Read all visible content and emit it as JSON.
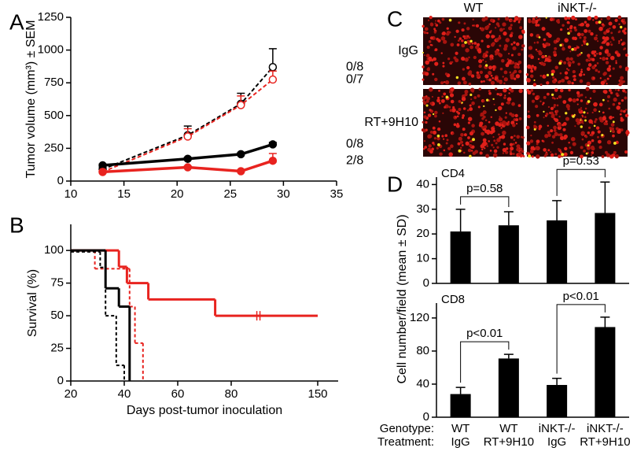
{
  "chart_data": [
    {
      "type": "line",
      "panel": "A",
      "ylabel": "Tumor volume (mm³) ± SEM",
      "x": [
        13,
        21,
        26,
        29
      ],
      "xlim": [
        10,
        35
      ],
      "xticks": [
        10,
        15,
        20,
        25,
        30,
        35
      ],
      "ylim": [
        0,
        1250
      ],
      "yticks": [
        0,
        250,
        500,
        750,
        1000,
        1250
      ],
      "series": [
        {
          "color": "#000000",
          "dashed": true,
          "marker": "open",
          "values": [
            90,
            350,
            590,
            870
          ],
          "errors": [
            15,
            70,
            80,
            140
          ],
          "end_label": "0/8"
        },
        {
          "color": "#e8231f",
          "dashed": true,
          "marker": "open",
          "values": [
            70,
            340,
            580,
            775
          ],
          "errors": [
            10,
            60,
            70,
            65
          ],
          "end_label": "0/7"
        },
        {
          "color": "#000000",
          "dashed": false,
          "marker": "filled",
          "values": [
            120,
            170,
            205,
            280
          ],
          "errors": [
            10,
            10,
            10,
            15
          ],
          "end_label": "0/8"
        },
        {
          "color": "#e8231f",
          "dashed": false,
          "marker": "filled",
          "values": [
            70,
            105,
            75,
            155
          ],
          "errors": [
            10,
            10,
            10,
            55
          ],
          "end_label": "2/8"
        }
      ]
    },
    {
      "type": "step",
      "panel": "B",
      "ylabel": "Survival (%)",
      "xlabel": "Days post-tumor inoculation",
      "xlim": [
        20,
        150
      ],
      "xticks": [
        20,
        40,
        60,
        80,
        150
      ],
      "ylim": [
        0,
        120
      ],
      "yticks": [
        0,
        25,
        50,
        75,
        100
      ],
      "series": [
        {
          "color": "#e8231f",
          "dashed": false,
          "x": [
            20,
            38,
            41,
            49,
            74,
            150
          ],
          "values": [
            100,
            87.5,
            75,
            62.5,
            50,
            50
          ],
          "censored_x": [
            102
          ]
        },
        {
          "color": "#e8231f",
          "dashed": true,
          "x": [
            20,
            29,
            42,
            44,
            47
          ],
          "values": [
            100,
            86,
            57,
            29,
            0
          ]
        },
        {
          "color": "#000000",
          "dashed": false,
          "x": [
            20,
            33,
            38,
            42
          ],
          "values": [
            100,
            71,
            57,
            0
          ]
        },
        {
          "color": "#000000",
          "dashed": true,
          "x": [
            20,
            31,
            33,
            37,
            40
          ],
          "values": [
            99,
            87,
            50,
            12,
            0
          ]
        }
      ]
    },
    {
      "type": "bar",
      "panel": "D",
      "title": "CD4",
      "ylabel": "Cell number/field (mean ± SD)",
      "color": "#000000",
      "values": [
        21,
        23.5,
        25.5,
        28.5
      ],
      "errors": [
        9,
        5.5,
        8,
        12.5
      ],
      "ylim": [
        0,
        43
      ],
      "yticks": [
        0,
        10,
        20,
        30,
        40
      ],
      "comparisons": [
        "p=0.58",
        "p=0.53"
      ]
    },
    {
      "type": "bar",
      "title": "CD8",
      "color": "#000000",
      "values": [
        28,
        71,
        39,
        109
      ],
      "errors": [
        8,
        5,
        8,
        12
      ],
      "ylim": [
        0,
        138
      ],
      "yticks": [
        0,
        40,
        80,
        120
      ],
      "comparisons": [
        "p<0.01",
        "p<0.01"
      ],
      "row_labels": [
        "Genotype:",
        "Treatment:"
      ],
      "genotype": [
        "WT",
        "WT",
        "iNKT-/-",
        "iNKT-/-"
      ],
      "treatment": [
        "IgG",
        "RT+9H10",
        "IgG",
        "RT+9H10"
      ]
    }
  ],
  "image_panel": {
    "label": "C",
    "columns": [
      "WT",
      "iNKT-/-"
    ],
    "rows": [
      "IgG",
      "RT+9H10"
    ]
  }
}
